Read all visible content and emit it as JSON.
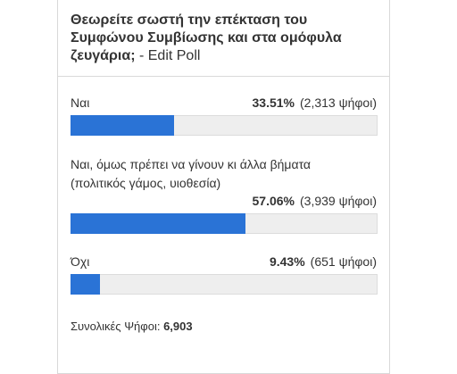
{
  "poll": {
    "question": "Θεωρείτε σωστή την επέκταση του Συμφώνου Συμβίωσης και στα ομόφυλα ζευγάρια;",
    "edit_link": "- Edit Poll",
    "answers": [
      {
        "label": "Ναι",
        "percent_text": "33.51%",
        "votes_text": "(2,313 ψήφοι)",
        "percent": 33.51
      },
      {
        "label": "Ναι, όμως πρέπει να γίνουν κι άλλα βήματα (πολιτικός γάμος, υιοθεσία)",
        "label_line1": "Ναι, όμως πρέπει να γίνουν κι άλλα βήματα",
        "label_line2": "(πολιτικός γάμος, υιοθεσία)",
        "percent_text": "57.06%",
        "votes_text": "(3,939 ψήφοι)",
        "percent": 57.06
      },
      {
        "label": "Όχι",
        "percent_text": "9.43%",
        "votes_text": "(651 ψήφοι)",
        "percent": 9.43
      }
    ],
    "total_label": "Συνολικές Ψήφοι:",
    "total_value": "6,903"
  },
  "colors": {
    "bar_fill": "#2a73d6",
    "bar_track": "#eeeeee",
    "border": "#d9d9d9",
    "text": "#333333"
  }
}
